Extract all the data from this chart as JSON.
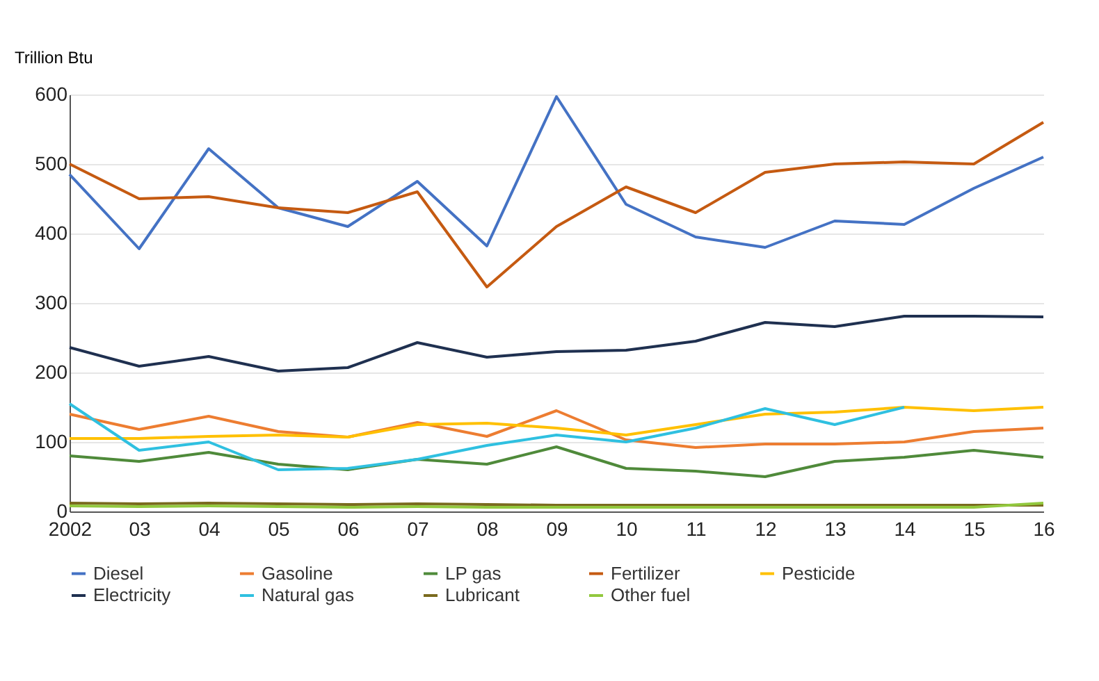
{
  "chart_data": {
    "type": "line",
    "ylabel": "Trillion Btu",
    "categories": [
      "2002",
      "03",
      "04",
      "05",
      "06",
      "07",
      "08",
      "09",
      "10",
      "11",
      "12",
      "13",
      "14",
      "15",
      "16"
    ],
    "ylim": [
      0,
      600
    ],
    "yticks": [
      0,
      100,
      200,
      300,
      400,
      500,
      600
    ],
    "grid": "y",
    "legend": "bottom",
    "marker": "none",
    "line_style": "solid",
    "series": [
      {
        "name": "Diesel",
        "color": "#4472c4",
        "values": [
          485,
          378,
          522,
          437,
          410,
          475,
          382,
          597,
          442,
          395,
          380,
          418,
          413,
          465,
          510
        ]
      },
      {
        "name": "Gasoline",
        "color": "#ed7d31",
        "values": [
          140,
          118,
          137,
          115,
          107,
          128,
          108,
          145,
          103,
          92,
          97,
          97,
          100,
          115,
          120
        ]
      },
      {
        "name": "LP gas",
        "color": "#4f8a3a",
        "values": [
          80,
          72,
          85,
          68,
          60,
          75,
          68,
          93,
          62,
          58,
          50,
          72,
          78,
          88,
          78
        ]
      },
      {
        "name": "Fertilizer",
        "color": "#c55a11",
        "values": [
          500,
          450,
          453,
          437,
          430,
          460,
          323,
          410,
          467,
          430,
          488,
          500,
          503,
          500,
          560
        ]
      },
      {
        "name": "Pesticide",
        "color": "#ffc000",
        "values": [
          105,
          105,
          108,
          110,
          107,
          125,
          127,
          120,
          110,
          125,
          140,
          143,
          150,
          145,
          150
        ]
      },
      {
        "name": "Electricity",
        "color": "#1f3050",
        "values": [
          236,
          209,
          223,
          202,
          207,
          243,
          222,
          230,
          232,
          245,
          272,
          266,
          281,
          281,
          280
        ]
      },
      {
        "name": "Natural gas",
        "color": "#2fc0e0",
        "values": [
          155,
          88,
          100,
          60,
          62,
          75,
          95,
          110,
          100,
          120,
          148,
          125,
          150,
          null,
          null
        ]
      },
      {
        "name": "Lubricant",
        "color": "#7a6a1e",
        "values": [
          12,
          11,
          12,
          11,
          10,
          11,
          10,
          9,
          9,
          9,
          9,
          9,
          9,
          9,
          9
        ]
      },
      {
        "name": "Other fuel",
        "color": "#92c83e",
        "values": [
          8,
          7,
          8,
          7,
          6,
          7,
          6,
          6,
          6,
          6,
          6,
          6,
          6,
          6,
          12
        ]
      }
    ]
  }
}
